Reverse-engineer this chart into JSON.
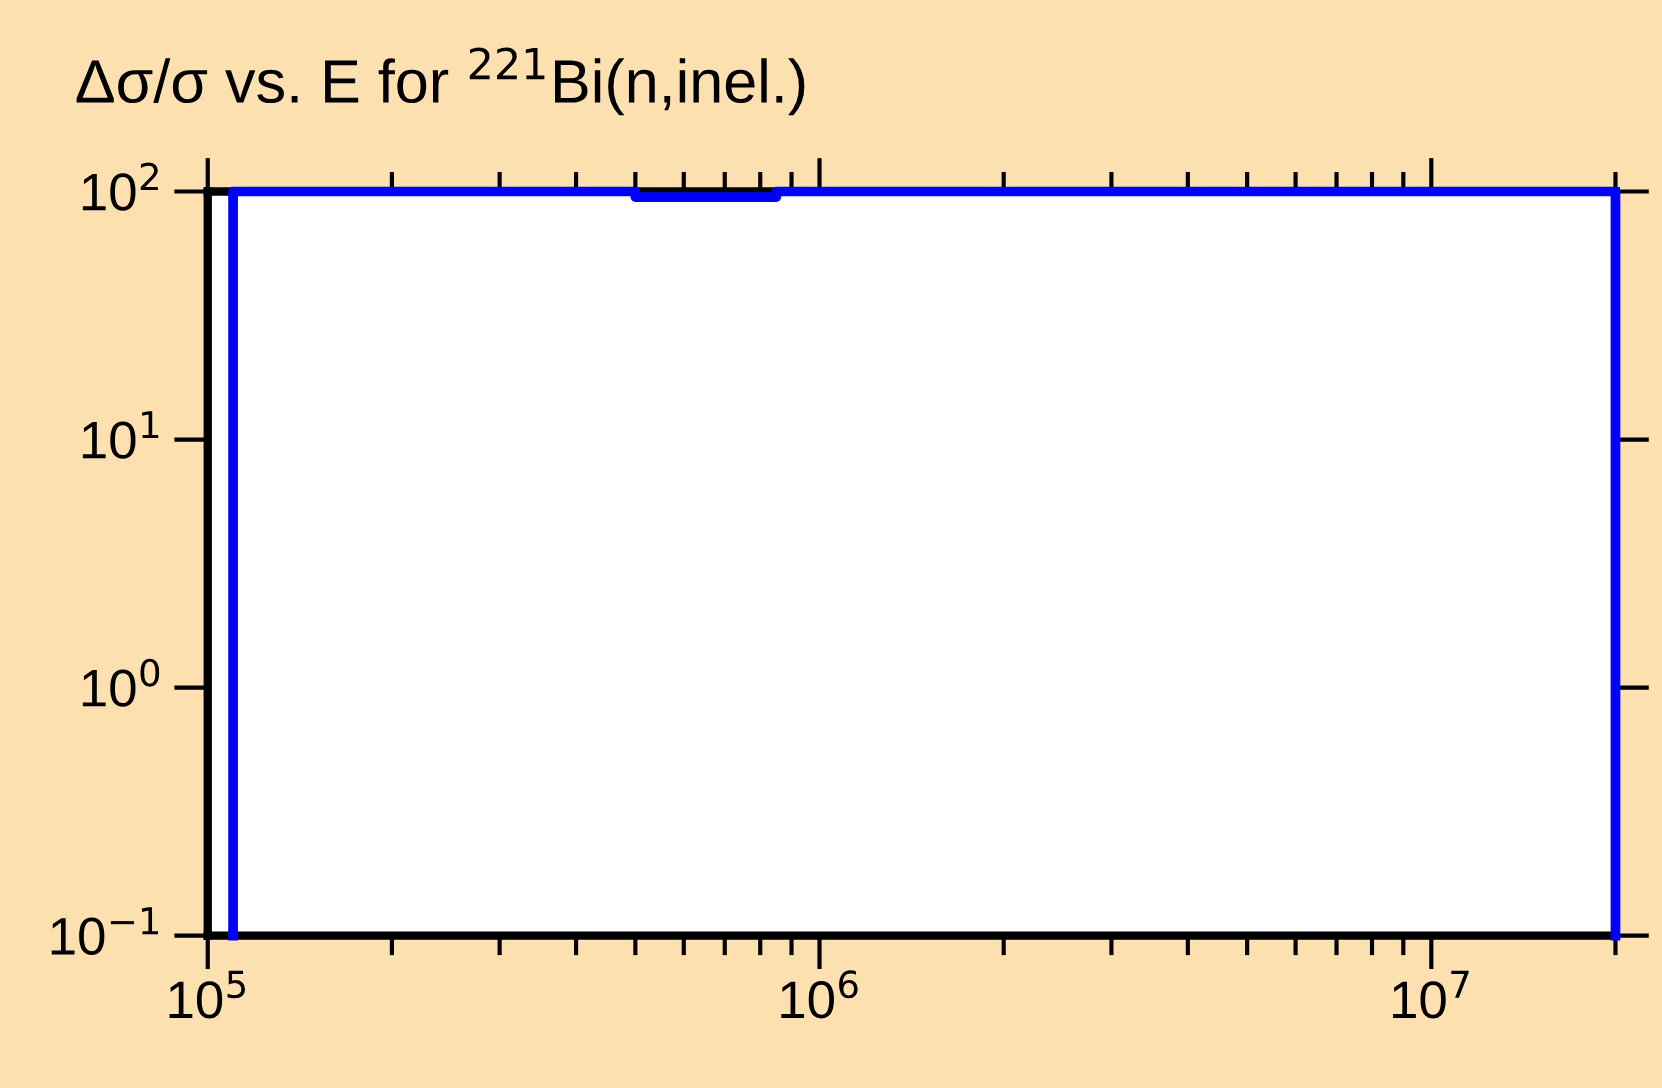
{
  "chart_data": {
    "type": "step",
    "title": "Δσ/σ vs. E for $^{221}$Bi(n,inel.)",
    "x": [
      110000,
      110000,
      500000,
      850000,
      20000000,
      20000000
    ],
    "series": [
      {
        "color": "#0000ff",
        "values": [
          0.1,
          100,
          95,
          100,
          100,
          0.1
        ]
      }
    ],
    "log": "xy",
    "xlim": [
      100000,
      20000000
    ],
    "ylim": [
      0.1,
      100
    ],
    "xticks": [
      {
        "value": 100000,
        "label": "10$^{5}$"
      },
      {
        "value": 1000000,
        "label": "10$^{6}$"
      },
      {
        "value": 10000000,
        "label": "10$^{7}$"
      }
    ],
    "yticks": [
      {
        "value": 0.1,
        "label": "10$^{−1}$"
      },
      {
        "value": 1,
        "label": "10$^{0}$"
      },
      {
        "value": 10,
        "label": "10$^{1}$"
      },
      {
        "value": 100,
        "label": "10$^{2}$"
      }
    ],
    "marker": "none",
    "line_style": "solid"
  }
}
